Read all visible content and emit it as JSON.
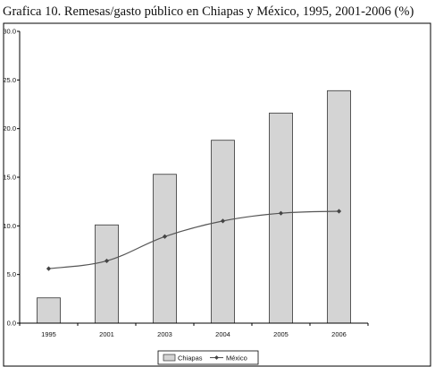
{
  "title": "Grafica 10. Remesas/gasto público en Chiapas y México, 1995, 2001-2006 (%)",
  "chart_data": {
    "type": "bar",
    "categories": [
      "1995",
      "2001",
      "2003",
      "2004",
      "2005",
      "2006"
    ],
    "series": [
      {
        "name": "Chiapas",
        "type": "bar",
        "values": [
          2.6,
          10.1,
          15.3,
          18.8,
          21.6,
          23.9
        ]
      },
      {
        "name": "México",
        "type": "line",
        "values": [
          5.6,
          6.4,
          8.9,
          10.5,
          11.3,
          11.5
        ]
      }
    ],
    "ylim": [
      0,
      30
    ],
    "yticks": [
      "0.0",
      "5.0",
      "10.0",
      "15.0",
      "20.0",
      "25.0",
      "30.0"
    ],
    "xlabel": "",
    "ylabel": "",
    "grid": false,
    "legend": "bottom",
    "colors": {
      "bar_fill": "#d4d4d4",
      "bar_stroke": "#333333",
      "line": "#555555",
      "marker": "#444444"
    }
  }
}
